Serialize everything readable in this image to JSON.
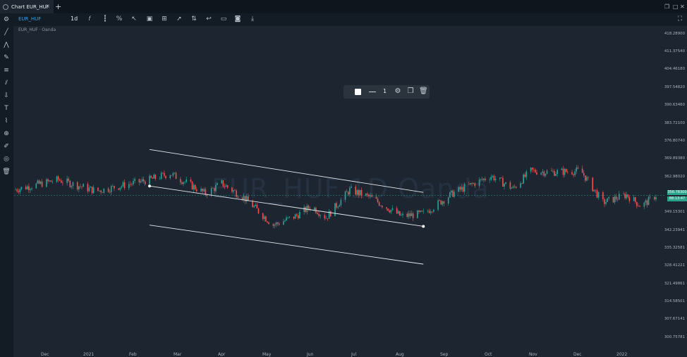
{
  "window": {
    "tab_title": "Chart EUR_HUF",
    "close_icon": "×",
    "new_tab_icon": "+"
  },
  "toolbar": {
    "symbol": "EUR_HUF",
    "timeframe": "1d"
  },
  "legend": {
    "text": "EUR_HUF · Oanda"
  },
  "watermark": "EUR_HUF,1D Oanda",
  "price_axis": {
    "labels": [
      "418.28900",
      "411.37540",
      "404.46180",
      "397.54820",
      "390.63460",
      "383.72100",
      "376.80740",
      "369.89380",
      "362.98020",
      "349.15301",
      "342.23941",
      "335.32581",
      "328.41221",
      "321.49861",
      "314.58501",
      "307.67141",
      "300.75781"
    ],
    "current_price": "356.78300",
    "countdown": "88:13:47"
  },
  "time_axis": {
    "labels": [
      "Dec",
      "2021",
      "Feb",
      "Mar",
      "Apr",
      "May",
      "Jun",
      "Jul",
      "Aug",
      "Sep",
      "Oct",
      "Nov",
      "Dec",
      "2022"
    ]
  },
  "floating_toolbar": {
    "line_width": "1"
  },
  "colors": {
    "up": "#26a69a",
    "down": "#ef5350",
    "background": "#1c2530",
    "accent": "#2aa38a"
  },
  "chart_data": {
    "type": "candlestick",
    "symbol": "EUR_HUF",
    "interval": "1d",
    "y_range": [
      296.0,
      424.0
    ],
    "x_range": [
      "2020-11-15",
      "2022-01-25"
    ],
    "drawing": "parallel channel",
    "anchors": [
      {
        "date": "2020-11-15",
        "close": 359.0
      },
      {
        "date": "2020-12-15",
        "close": 363.0
      },
      {
        "date": "2021-01-10",
        "close": 358.5
      },
      {
        "date": "2021-02-15",
        "close": 363.0
      },
      {
        "date": "2021-03-01",
        "close": 365.5
      },
      {
        "date": "2021-03-25",
        "close": 357.5
      },
      {
        "date": "2021-04-05",
        "close": 361.5
      },
      {
        "date": "2021-04-20",
        "close": 356.0
      },
      {
        "date": "2021-05-10",
        "close": 345.0
      },
      {
        "date": "2021-05-25",
        "close": 348.5
      },
      {
        "date": "2021-06-05",
        "close": 352.5
      },
      {
        "date": "2021-06-15",
        "close": 348.0
      },
      {
        "date": "2021-07-01",
        "close": 359.0
      },
      {
        "date": "2021-07-15",
        "close": 356.0
      },
      {
        "date": "2021-08-05",
        "close": 348.5
      },
      {
        "date": "2021-08-20",
        "close": 349.5
      },
      {
        "date": "2021-09-10",
        "close": 358.0
      },
      {
        "date": "2021-10-05",
        "close": 364.5
      },
      {
        "date": "2021-10-20",
        "close": 359.5
      },
      {
        "date": "2021-11-01",
        "close": 366.5
      },
      {
        "date": "2021-11-15",
        "close": 366.0
      },
      {
        "date": "2021-12-05",
        "close": 366.5
      },
      {
        "date": "2021-12-20",
        "close": 354.0
      },
      {
        "date": "2022-01-05",
        "close": 357.0
      },
      {
        "date": "2022-01-15",
        "close": 352.5
      },
      {
        "date": "2022-01-25",
        "close": 356.8
      }
    ],
    "channel": [
      {
        "from": {
          "date": "2021-02-15",
          "price": 375.0
        },
        "to": {
          "date": "2021-08-20",
          "price": 358.0
        }
      },
      {
        "from": {
          "date": "2021-02-15",
          "price": 360.5
        },
        "to": {
          "date": "2021-08-20",
          "price": 344.5
        }
      },
      {
        "from": {
          "date": "2021-02-15",
          "price": 345.0
        },
        "to": {
          "date": "2021-08-20",
          "price": 329.5
        }
      }
    ]
  }
}
